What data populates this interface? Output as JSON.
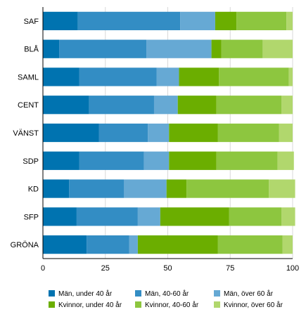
{
  "chart_data": {
    "type": "bar",
    "orientation": "horizontal",
    "stacked": true,
    "categories": [
      "SAF",
      "BLÅ",
      "SAML",
      "CENT",
      "VÄNST",
      "SDP",
      "KD",
      "SFP",
      "GRÖNA"
    ],
    "xlim": [
      0,
      100
    ],
    "xticks": [
      "0",
      "25",
      "50",
      "75",
      "100"
    ],
    "grid": "vertical",
    "legend_position": "bottom",
    "series": [
      {
        "name": "Män, under 40 år",
        "color": "#0073b0",
        "values": [
          14,
          6.5,
          14.5,
          18.5,
          22.5,
          14.5,
          10.5,
          13.5,
          17.5
        ]
      },
      {
        "name": "Män, 40-60 år",
        "color": "#338dc4",
        "values": [
          41,
          35,
          31,
          26,
          19.5,
          26,
          22,
          24.5,
          17
        ]
      },
      {
        "name": "Män, över 60 år",
        "color": "#66a9d4",
        "values": [
          14,
          26,
          9,
          9.5,
          8.5,
          10,
          17,
          9,
          3.5
        ]
      },
      {
        "name": "Kvinnor, under 40 år",
        "color": "#6bae00",
        "values": [
          8.5,
          4,
          16,
          15.5,
          19.5,
          19,
          8,
          27.5,
          32
        ]
      },
      {
        "name": "Kvinnor, 40-60 år",
        "color": "#8dc63f",
        "values": [
          20,
          16.5,
          28,
          26,
          24.5,
          24.5,
          33,
          21,
          26
        ]
      },
      {
        "name": "Kvinnor, över 60 år",
        "color": "#b1d76d",
        "values": [
          2.5,
          12,
          1.5,
          4.5,
          5.5,
          6.5,
          10.5,
          5.5,
          4
        ]
      }
    ]
  }
}
